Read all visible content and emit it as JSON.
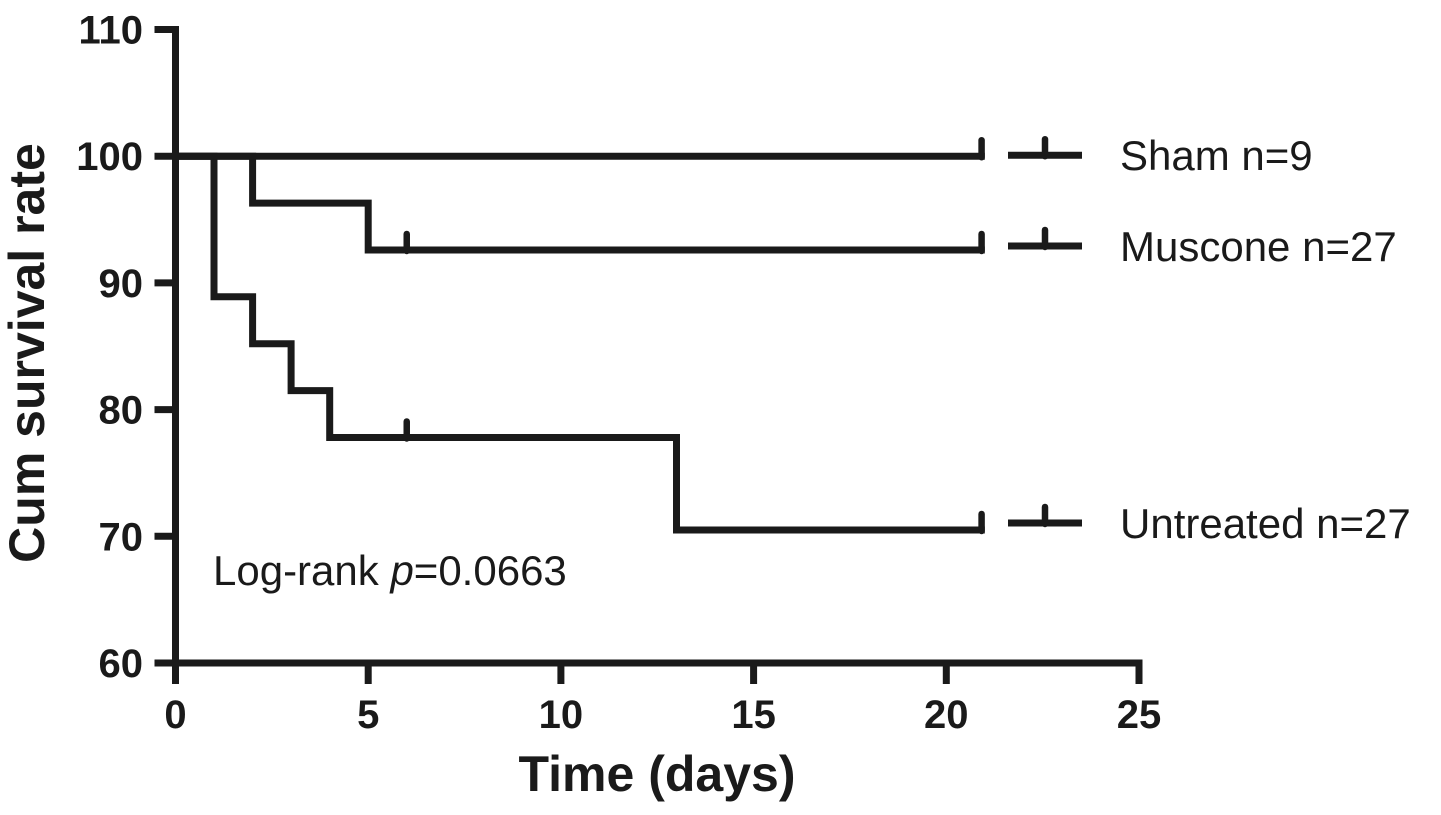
{
  "chart_data": {
    "type": "line",
    "subtype": "kaplan-meier-step",
    "title": "",
    "xlabel": "Time (days)",
    "ylabel": "Cum survival rate",
    "xlim": [
      0,
      25
    ],
    "ylim": [
      60,
      110
    ],
    "xticks": [
      0,
      5,
      10,
      15,
      20,
      25
    ],
    "yticks": [
      60,
      70,
      80,
      90,
      100,
      110
    ],
    "grid": false,
    "legend_position": "right-of-plot",
    "line_color": "#1a1a1a",
    "background_color": "#ffffff",
    "annotation": {
      "prefix": "Log-rank ",
      "italic": "p",
      "suffix": "=0.0663"
    },
    "series": [
      {
        "name": "Sham n=9",
        "group": "Sham",
        "n": 9,
        "final_survival_pct": 100,
        "steps": [
          [
            0,
            100
          ],
          [
            21,
            100
          ]
        ],
        "censor_ticks_x": [
          21
        ]
      },
      {
        "name": "Muscone n=27",
        "group": "Muscone",
        "n": 27,
        "final_survival_pct": 92.6,
        "steps": [
          [
            0,
            100
          ],
          [
            2,
            100
          ],
          [
            2,
            96.3
          ],
          [
            5,
            96.3
          ],
          [
            5,
            92.6
          ],
          [
            21,
            92.6
          ]
        ],
        "censor_ticks_x": [
          6,
          21
        ]
      },
      {
        "name": "Untreated n=27",
        "group": "Untreated",
        "n": 27,
        "final_survival_pct": 70.5,
        "steps": [
          [
            0,
            100
          ],
          [
            1,
            100
          ],
          [
            1,
            88.9
          ],
          [
            2,
            88.9
          ],
          [
            2,
            85.2
          ],
          [
            3,
            85.2
          ],
          [
            3,
            81.5
          ],
          [
            4,
            81.5
          ],
          [
            4,
            77.8
          ],
          [
            13,
            77.8
          ],
          [
            13,
            70.5
          ],
          [
            21,
            70.5
          ]
        ],
        "censor_ticks_x": [
          6,
          21
        ]
      }
    ]
  }
}
